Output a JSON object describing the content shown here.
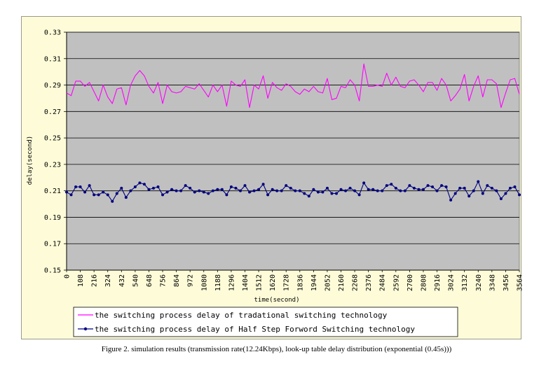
{
  "caption": "Figure 2.    simulation results (transmission rate(12.24Kbps), look-up table delay distribution (exponential (0.45s)))",
  "chart_data": {
    "type": "line",
    "xlabel": "time(second)",
    "ylabel": "delay(second)",
    "ylim": [
      0.15,
      0.33
    ],
    "yticks": [
      "0.33",
      "0.31",
      "0.29",
      "0.27",
      "0.25",
      "0.23",
      "0.21",
      "0.19",
      "0.17",
      "0.15"
    ],
    "ytick_values": [
      0.33,
      0.31,
      0.29,
      0.27,
      0.25,
      0.23,
      0.21,
      0.19,
      0.17,
      0.15
    ],
    "xticks": [
      "0",
      "108",
      "216",
      "324",
      "432",
      "540",
      "648",
      "756",
      "864",
      "972",
      "1080",
      "1188",
      "1296",
      "1404",
      "1512",
      "1620",
      "1728",
      "1836",
      "1944",
      "2052",
      "2160",
      "2268",
      "2376",
      "2484",
      "2592",
      "2700",
      "2808",
      "2916",
      "3024",
      "3132",
      "3240",
      "3348",
      "3456",
      "3564"
    ],
    "x_step": 36,
    "grid": "horizontal",
    "plot_background": "#c0c0c0",
    "chart_background": "#fefcd8",
    "legend_position": "bottom",
    "series": [
      {
        "name": "the switching process delay of tradational switching technology",
        "color": "#ff00ff",
        "marker": "none",
        "values": [
          0.284,
          0.282,
          0.293,
          0.293,
          0.289,
          0.292,
          0.285,
          0.278,
          0.29,
          0.281,
          0.276,
          0.287,
          0.288,
          0.275,
          0.29,
          0.297,
          0.301,
          0.297,
          0.289,
          0.284,
          0.292,
          0.276,
          0.29,
          0.285,
          0.284,
          0.285,
          0.289,
          0.288,
          0.287,
          0.291,
          0.286,
          0.281,
          0.29,
          0.285,
          0.29,
          0.274,
          0.293,
          0.29,
          0.289,
          0.294,
          0.273,
          0.29,
          0.287,
          0.297,
          0.28,
          0.292,
          0.288,
          0.286,
          0.291,
          0.289,
          0.285,
          0.283,
          0.287,
          0.285,
          0.289,
          0.285,
          0.284,
          0.295,
          0.279,
          0.28,
          0.289,
          0.288,
          0.294,
          0.29,
          0.278,
          0.306,
          0.289,
          0.289,
          0.29,
          0.289,
          0.299,
          0.29,
          0.296,
          0.289,
          0.288,
          0.293,
          0.294,
          0.29,
          0.285,
          0.292,
          0.292,
          0.286,
          0.295,
          0.29,
          0.278,
          0.282,
          0.287,
          0.298,
          0.278,
          0.289,
          0.297,
          0.281,
          0.294,
          0.294,
          0.291,
          0.273,
          0.284,
          0.294,
          0.295,
          0.283
        ]
      },
      {
        "name": "the switching process delay of Half Step Forword Switching technology",
        "color": "#000080",
        "marker": "circle",
        "values": [
          0.209,
          0.207,
          0.213,
          0.213,
          0.209,
          0.214,
          0.207,
          0.207,
          0.209,
          0.207,
          0.202,
          0.208,
          0.212,
          0.205,
          0.21,
          0.213,
          0.216,
          0.215,
          0.211,
          0.212,
          0.213,
          0.207,
          0.209,
          0.211,
          0.21,
          0.21,
          0.214,
          0.212,
          0.209,
          0.21,
          0.209,
          0.208,
          0.21,
          0.211,
          0.211,
          0.207,
          0.213,
          0.212,
          0.21,
          0.214,
          0.209,
          0.21,
          0.211,
          0.215,
          0.207,
          0.211,
          0.21,
          0.21,
          0.214,
          0.212,
          0.21,
          0.21,
          0.208,
          0.206,
          0.211,
          0.209,
          0.209,
          0.212,
          0.208,
          0.208,
          0.211,
          0.21,
          0.212,
          0.21,
          0.207,
          0.216,
          0.211,
          0.211,
          0.21,
          0.21,
          0.214,
          0.215,
          0.212,
          0.21,
          0.21,
          0.214,
          0.212,
          0.211,
          0.211,
          0.214,
          0.213,
          0.21,
          0.214,
          0.213,
          0.203,
          0.208,
          0.212,
          0.212,
          0.206,
          0.21,
          0.217,
          0.208,
          0.214,
          0.212,
          0.21,
          0.204,
          0.208,
          0.212,
          0.213,
          0.207
        ]
      }
    ]
  }
}
